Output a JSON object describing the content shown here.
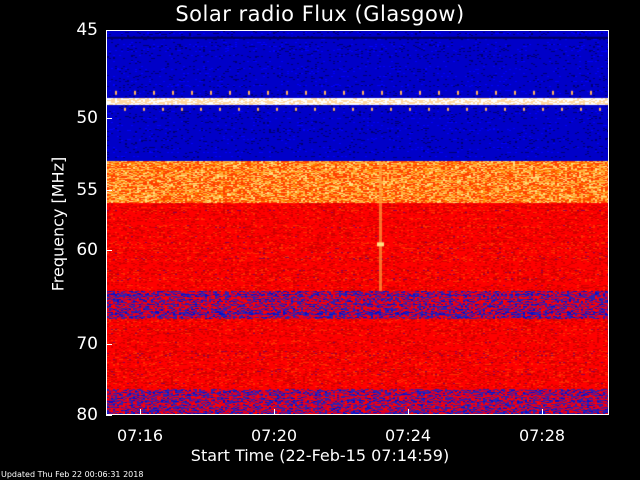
{
  "chart_data": {
    "type": "heatmap",
    "title": "Solar radio Flux (Glasgow)",
    "ylabel": "Frequency [MHz]",
    "xlabel": "Start Time (22-Feb-15 07:14:59)",
    "y_ticks": [
      "45",
      "50",
      "55",
      "60",
      "70",
      "80"
    ],
    "x_ticks": [
      "07:16",
      "07:20",
      "07:24",
      "07:28"
    ],
    "ylim": [
      45,
      80
    ],
    "xlim": [
      "07:14:59",
      "07:30:00"
    ],
    "y_scale": "reciprocal",
    "colormap": [
      "#0000c8",
      "#ff0000",
      "#ff8000",
      "#ffe080",
      "#ffffff"
    ],
    "bands": [
      {
        "from_mhz": 45,
        "to_mhz": 48.7,
        "level": "low"
      },
      {
        "from_mhz": 48.7,
        "to_mhz": 49.1,
        "level": "max"
      },
      {
        "from_mhz": 49.1,
        "to_mhz": 52.8,
        "level": "low"
      },
      {
        "from_mhz": 52.8,
        "to_mhz": 56,
        "level": "high"
      },
      {
        "from_mhz": 56,
        "to_mhz": 64,
        "level": "medium"
      },
      {
        "from_mhz": 64,
        "to_mhz": 67,
        "level": "mixed"
      },
      {
        "from_mhz": 67,
        "to_mhz": 76,
        "level": "medium"
      },
      {
        "from_mhz": 76,
        "to_mhz": 80,
        "level": "mixed"
      }
    ],
    "features": [
      {
        "time": "07:23:10",
        "frequency_mhz": 59.5,
        "level": "high"
      }
    ]
  },
  "footer": {
    "updated": "Updated Thu Feb 22 00:06:31 2018"
  }
}
